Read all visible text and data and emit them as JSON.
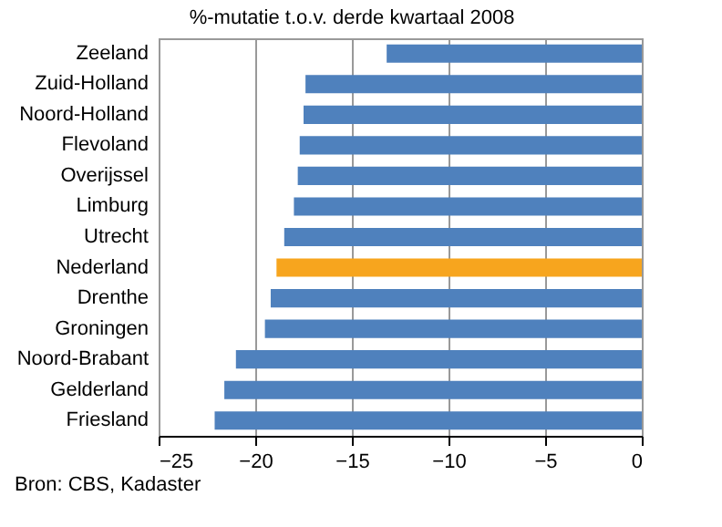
{
  "chart_data": {
    "type": "bar",
    "orientation": "horizontal",
    "title": "%-mutatie t.o.v. derde kwartaal 2008",
    "categories": [
      "Zeeland",
      "Zuid-Holland",
      "Noord-Holland",
      "Flevoland",
      "Overijssel",
      "Limburg",
      "Utrecht",
      "Nederland",
      "Drenthe",
      "Groningen",
      "Noord-Brabant",
      "Gelderland",
      "Friesland"
    ],
    "values": [
      -13.2,
      -17.4,
      -17.5,
      -17.7,
      -17.8,
      -18.0,
      -18.5,
      -18.9,
      -19.2,
      -19.5,
      -21.0,
      -21.6,
      -22.1
    ],
    "colors": [
      "#4f81bd",
      "#4f81bd",
      "#4f81bd",
      "#4f81bd",
      "#4f81bd",
      "#4f81bd",
      "#4f81bd",
      "#f7a51e",
      "#4f81bd",
      "#4f81bd",
      "#4f81bd",
      "#4f81bd",
      "#4f81bd"
    ],
    "xlim": [
      -25,
      0
    ],
    "xticks": [
      -25,
      -20,
      -15,
      -10,
      -5,
      0
    ],
    "grid": "x",
    "annotations": [
      "Bron: CBS, Kadaster"
    ]
  }
}
